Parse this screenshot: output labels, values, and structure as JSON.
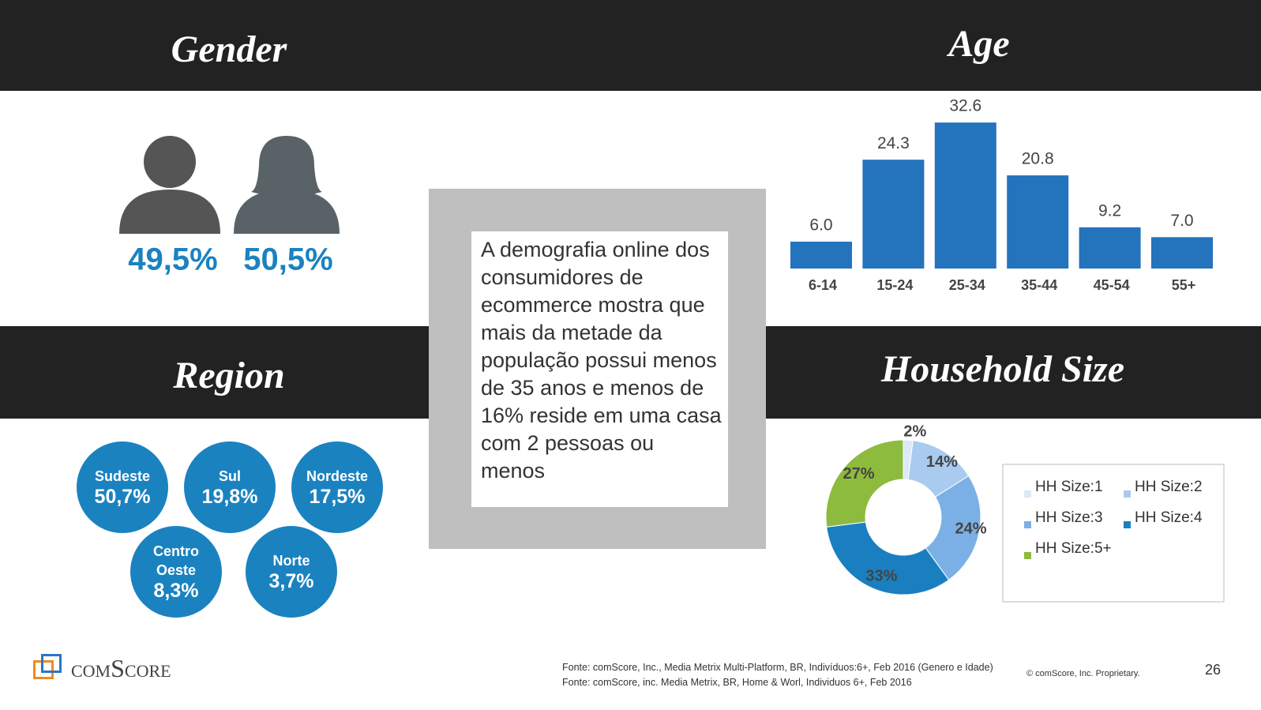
{
  "gender": {
    "title": "Gender",
    "values": [
      "49,5%",
      "50,5%"
    ]
  },
  "region": {
    "title": "Region",
    "items": [
      {
        "name": "Sudeste",
        "value": "50,7%"
      },
      {
        "name": "Sul",
        "value": "19,8%"
      },
      {
        "name": "Nordeste",
        "value": "17,5%"
      },
      {
        "name": "Centro Oeste",
        "value": "8,3%"
      },
      {
        "name": "Norte",
        "value": "3,7%"
      }
    ]
  },
  "callout": "A demografia online dos  consumidores de ecommerce mostra que mais da metade da população possui menos de 35 anos e menos de 16% reside em uma casa com 2 pessoas ou menos",
  "chart_data": [
    {
      "type": "bar",
      "title": "Age",
      "categories": [
        "6-14",
        "15-24",
        "25-34",
        "35-44",
        "45-54",
        "55+"
      ],
      "values": [
        6.0,
        24.3,
        32.6,
        20.8,
        9.2,
        7.0
      ],
      "value_labels": [
        "6.0",
        "24.3",
        "32.6",
        "20.8",
        "9.2",
        "7.0"
      ],
      "color": "#2473bd"
    },
    {
      "type": "donut",
      "title": "Household Size",
      "categories": [
        "HH Size:1",
        "HH Size:2",
        "HH Size:3",
        "HH Size:4",
        "HH Size:5+"
      ],
      "values": [
        2,
        14,
        24,
        33,
        27
      ],
      "value_labels": [
        "2%",
        "14%",
        "24%",
        "33%",
        "27%"
      ],
      "colors": [
        "#dce9f7",
        "#a9cbef",
        "#7ab0e6",
        "#1a7fc1",
        "#8dbb3d"
      ]
    }
  ],
  "footer": {
    "logo": "comScore",
    "sources": [
      "Fonte: comScore, Inc., Media Metrix Multi-Platform, BR, Indivíduos:6+, Feb 2016 (Genero e Idade)",
      "Fonte: comScore, inc. Media Metrix, BR, Home & Worl, Individuos 6+, Feb 2016"
    ],
    "copyright": "© comScore, Inc. Proprietary.",
    "page": "26"
  }
}
